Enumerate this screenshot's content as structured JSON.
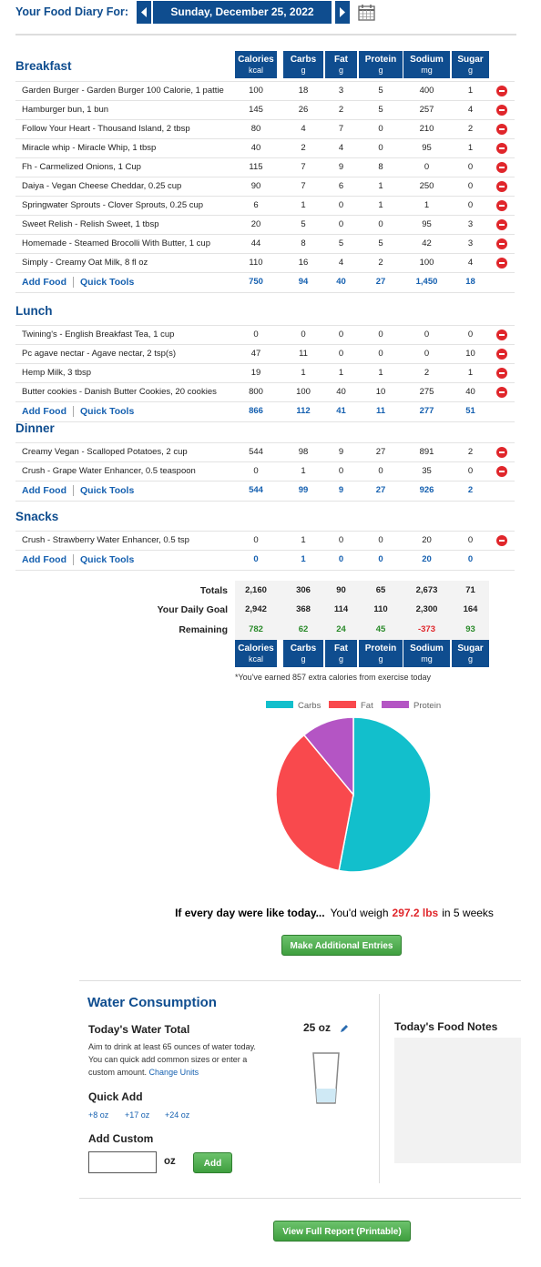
{
  "header": {
    "label": "Your Food Diary For:",
    "date": "Sunday, December 25, 2022"
  },
  "columns": [
    {
      "name": "Calories",
      "unit": "kcal"
    },
    {
      "name": "Carbs",
      "unit": "g"
    },
    {
      "name": "Fat",
      "unit": "g"
    },
    {
      "name": "Protein",
      "unit": "g"
    },
    {
      "name": "Sodium",
      "unit": "mg"
    },
    {
      "name": "Sugar",
      "unit": "g"
    }
  ],
  "links": {
    "add_food": "Add Food",
    "quick_tools": "Quick Tools"
  },
  "meals": [
    {
      "name": "Breakfast",
      "rows": [
        {
          "food": "Garden Burger - Garden Burger 100 Calorie, 1 pattie",
          "values": [
            "100",
            "18",
            "3",
            "5",
            "400",
            "1"
          ]
        },
        {
          "food": "Hamburger bun, 1 bun",
          "values": [
            "145",
            "26",
            "2",
            "5",
            "257",
            "4"
          ]
        },
        {
          "food": "Follow Your Heart - Thousand Island, 2 tbsp",
          "values": [
            "80",
            "4",
            "7",
            "0",
            "210",
            "2"
          ]
        },
        {
          "food": "Miracle whip - Miracle Whip, 1 tbsp",
          "values": [
            "40",
            "2",
            "4",
            "0",
            "95",
            "1"
          ]
        },
        {
          "food": "Fh - Carmelized Onions, 1 Cup",
          "values": [
            "115",
            "7",
            "9",
            "8",
            "0",
            "0"
          ]
        },
        {
          "food": "Daiya - Vegan Cheese Cheddar, 0.25 cup",
          "values": [
            "90",
            "7",
            "6",
            "1",
            "250",
            "0"
          ]
        },
        {
          "food": "Springwater Sprouts - Clover Sprouts, 0.25 cup",
          "values": [
            "6",
            "1",
            "0",
            "1",
            "1",
            "0"
          ]
        },
        {
          "food": "Sweet Relish - Relish Sweet, 1 tbsp",
          "values": [
            "20",
            "5",
            "0",
            "0",
            "95",
            "3"
          ]
        },
        {
          "food": "Homemade - Steamed Brocolli With Butter, 1 cup",
          "values": [
            "44",
            "8",
            "5",
            "5",
            "42",
            "3"
          ]
        },
        {
          "food": "Simply - Creamy Oat Milk, 8 fl oz",
          "values": [
            "110",
            "16",
            "4",
            "2",
            "100",
            "4"
          ]
        }
      ],
      "totals": [
        "750",
        "94",
        "40",
        "27",
        "1,450",
        "18"
      ]
    },
    {
      "name": "Lunch",
      "rows": [
        {
          "food": "Twining's - English Breakfast Tea, 1 cup",
          "values": [
            "0",
            "0",
            "0",
            "0",
            "0",
            "0"
          ]
        },
        {
          "food": "Pc agave nectar - Agave nectar, 2 tsp(s)",
          "values": [
            "47",
            "11",
            "0",
            "0",
            "0",
            "10"
          ]
        },
        {
          "food": "Hemp Milk, 3 tbsp",
          "values": [
            "19",
            "1",
            "1",
            "1",
            "2",
            "1"
          ]
        },
        {
          "food": "Butter cookies - Danish Butter Cookies, 20 cookies",
          "values": [
            "800",
            "100",
            "40",
            "10",
            "275",
            "40"
          ]
        }
      ],
      "totals": [
        "866",
        "112",
        "41",
        "11",
        "277",
        "51"
      ]
    },
    {
      "name": "Dinner",
      "rows": [
        {
          "food": "Creamy Vegan - Scalloped Potatoes, 2 cup",
          "values": [
            "544",
            "98",
            "9",
            "27",
            "891",
            "2"
          ]
        },
        {
          "food": "Crush - Grape Water Enhancer, 0.5 teaspoon",
          "values": [
            "0",
            "1",
            "0",
            "0",
            "35",
            "0"
          ]
        }
      ],
      "totals": [
        "544",
        "99",
        "9",
        "27",
        "926",
        "2"
      ]
    },
    {
      "name": "Snacks",
      "rows": [
        {
          "food": "Crush - Strawberry Water Enhancer, 0.5 tsp",
          "values": [
            "0",
            "1",
            "0",
            "0",
            "20",
            "0"
          ]
        }
      ],
      "totals": [
        "0",
        "1",
        "0",
        "0",
        "20",
        "0"
      ]
    }
  ],
  "summary": [
    {
      "label": "Totals",
      "values": [
        "2,160",
        "306",
        "90",
        "65",
        "2,673",
        "71"
      ]
    },
    {
      "label": "Your Daily Goal",
      "values": [
        "2,942",
        "368",
        "114",
        "110",
        "2,300",
        "164"
      ]
    },
    {
      "label": "Remaining",
      "values": [
        "782",
        "62",
        "24",
        "45",
        "-373",
        "93"
      ]
    }
  ],
  "exercise_note": "*You've earned 857 extra calories from exercise today",
  "chart_data": {
    "type": "pie",
    "categories": [
      "Carbs",
      "Fat",
      "Protein"
    ],
    "values": [
      53,
      36,
      11
    ],
    "colors": [
      "#12bfcc",
      "#f9494d",
      "#b455c4"
    ],
    "legend": "top"
  },
  "projection": {
    "lead": "If every day were like today...",
    "text": "You'd weigh",
    "weight": "297.2 lbs",
    "tail": "in 5 weeks"
  },
  "buttons": {
    "more": "Make Additional Entries",
    "report": "View Full Report (Printable)",
    "add": "Add"
  },
  "water": {
    "title": "Water Consumption",
    "subtitle": "Today's Water Total",
    "amount": "25 oz",
    "info": "Aim to drink at least 65 ounces of water today. You can quick add common sizes or enter a custom amount.",
    "change_units": "Change Units",
    "quick_add": "Quick Add",
    "quick_options": [
      "+8 oz",
      "+17 oz",
      "+24 oz"
    ],
    "add_custom": "Add Custom",
    "unit": "oz"
  },
  "notes": {
    "title": "Today's Food Notes"
  }
}
